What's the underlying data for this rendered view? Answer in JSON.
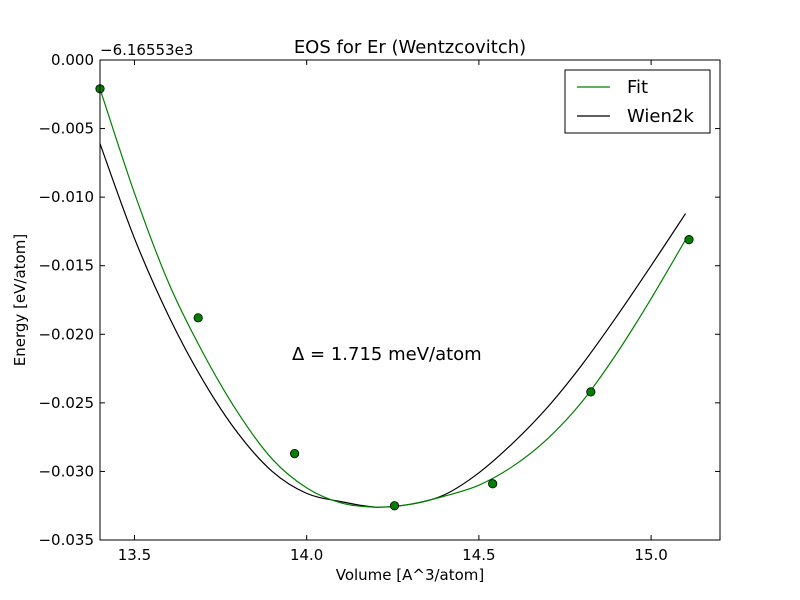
{
  "chart_data": {
    "type": "line",
    "title": "EOS for Er (Wentzcovitch)",
    "xlabel": "Volume [A^3/atom]",
    "ylabel": "Energy [eV/atom]",
    "offset_text": "−6.16553e3",
    "annotation": "Δ = 1.715 meV/atom",
    "xlim": [
      13.4,
      15.2
    ],
    "ylim": [
      -0.035,
      0.0
    ],
    "x_ticks": [
      13.5,
      14.0,
      14.5,
      15.0
    ],
    "x_tick_labels": [
      "13.5",
      "14.0",
      "14.5",
      "15.0"
    ],
    "y_ticks": [
      0.0,
      -0.005,
      -0.01,
      -0.015,
      -0.02,
      -0.025,
      -0.03,
      -0.035
    ],
    "y_tick_labels": [
      "0.000",
      "−0.005",
      "−0.010",
      "−0.015",
      "−0.020",
      "−0.025",
      "−0.030",
      "−0.035"
    ],
    "grid": false,
    "legend_position": "top-right",
    "series": [
      {
        "name": "Fit",
        "color": "#008000",
        "kind": "curve",
        "x": [
          13.4,
          13.5,
          13.6,
          13.7,
          13.8,
          13.9,
          14.0,
          14.1,
          14.2,
          14.3,
          14.4,
          14.5,
          14.6,
          14.7,
          14.8,
          14.9,
          15.0,
          15.1
        ],
        "values": [
          -0.0021,
          -0.0097,
          -0.0163,
          -0.0214,
          -0.0257,
          -0.0291,
          -0.0312,
          -0.0323,
          -0.0326,
          -0.0324,
          -0.0318,
          -0.031,
          -0.0296,
          -0.0276,
          -0.0249,
          -0.0214,
          -0.0174,
          -0.0131
        ]
      },
      {
        "name": "Wien2k",
        "color": "#000000",
        "kind": "curve",
        "x": [
          13.4,
          13.5,
          13.6,
          13.7,
          13.8,
          13.9,
          14.0,
          14.1,
          14.2,
          14.3,
          14.4,
          14.5,
          14.6,
          14.7,
          14.8,
          14.9,
          15.0,
          15.1
        ],
        "values": [
          -0.0061,
          -0.013,
          -0.0187,
          -0.0234,
          -0.0272,
          -0.03,
          -0.0316,
          -0.0322,
          -0.0326,
          -0.0324,
          -0.0317,
          -0.0301,
          -0.0279,
          -0.0253,
          -0.0222,
          -0.0187,
          -0.015,
          -0.0112
        ]
      },
      {
        "name": "",
        "color": "#008000",
        "kind": "points",
        "x": [
          13.4,
          13.685,
          13.965,
          14.255,
          14.54,
          14.825,
          15.11
        ],
        "values": [
          -0.0021,
          -0.0188,
          -0.0287,
          -0.0325,
          -0.0309,
          -0.0242,
          -0.0131
        ]
      }
    ]
  }
}
